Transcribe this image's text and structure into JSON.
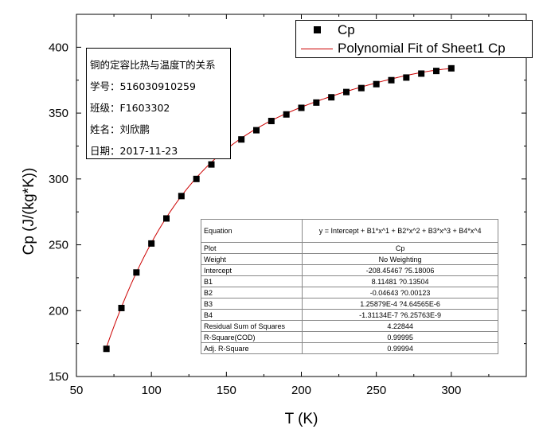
{
  "chart_data": {
    "type": "scatter",
    "xlabel": "T (K)",
    "ylabel": "Cp (J/(kg*K))",
    "xlim": [
      50,
      350
    ],
    "ylim": [
      150,
      425
    ],
    "x_ticks": [
      "50",
      "100",
      "150",
      "200",
      "250",
      "300"
    ],
    "y_ticks": [
      "150",
      "200",
      "250",
      "300",
      "350",
      "400"
    ],
    "grid": false,
    "legend_position": "top-right",
    "series": [
      {
        "name": "Cp",
        "marker": "square",
        "color": "#000000",
        "x": [
          70,
          80,
          90,
          100,
          110,
          120,
          130,
          140,
          150,
          160,
          170,
          180,
          190,
          200,
          210,
          220,
          230,
          240,
          250,
          260,
          270,
          280,
          290,
          300
        ],
        "y": [
          171,
          202,
          229,
          251,
          270,
          287,
          300,
          311,
          321,
          330,
          337,
          344,
          349,
          354,
          358,
          362,
          366,
          369,
          372,
          375,
          377,
          380,
          382,
          384
        ]
      },
      {
        "name": "Polynomial Fit of Sheet1 Cp",
        "line": true,
        "color": "#cc0000",
        "coefficients": [
          -208.45467,
          8.11481,
          -0.04643,
          0.000125879,
          -1.31134e-07
        ],
        "x_range": [
          70,
          300
        ]
      }
    ]
  },
  "info": {
    "lines": [
      "铜的定容比热与温度T的关系",
      "学号：516030910259",
      "班级：F1603302",
      "姓名：刘欣鹏",
      "日期：2017-11-23"
    ]
  },
  "fit_table": {
    "rows": [
      [
        "Equation",
        "y = Intercept + B1*x^1 + B2*x^2 + B3*x^3 + B4*x^4"
      ],
      [
        "Plot",
        "Cp"
      ],
      [
        "Weight",
        "No Weighting"
      ],
      [
        "Intercept",
        "-208.45467 ?5.18006"
      ],
      [
        "B1",
        "8.11481 ?0.13504"
      ],
      [
        "B2",
        "-0.04643 ?0.00123"
      ],
      [
        "B3",
        "1.25879E-4 ?4.64565E-6"
      ],
      [
        "B4",
        "-1.31134E-7 ?6.25763E-9"
      ],
      [
        "Residual Sum of Squares",
        "4.22844"
      ],
      [
        "R-Square(COD)",
        "0.99995"
      ],
      [
        "Adj. R-Square",
        "0.99994"
      ]
    ]
  }
}
